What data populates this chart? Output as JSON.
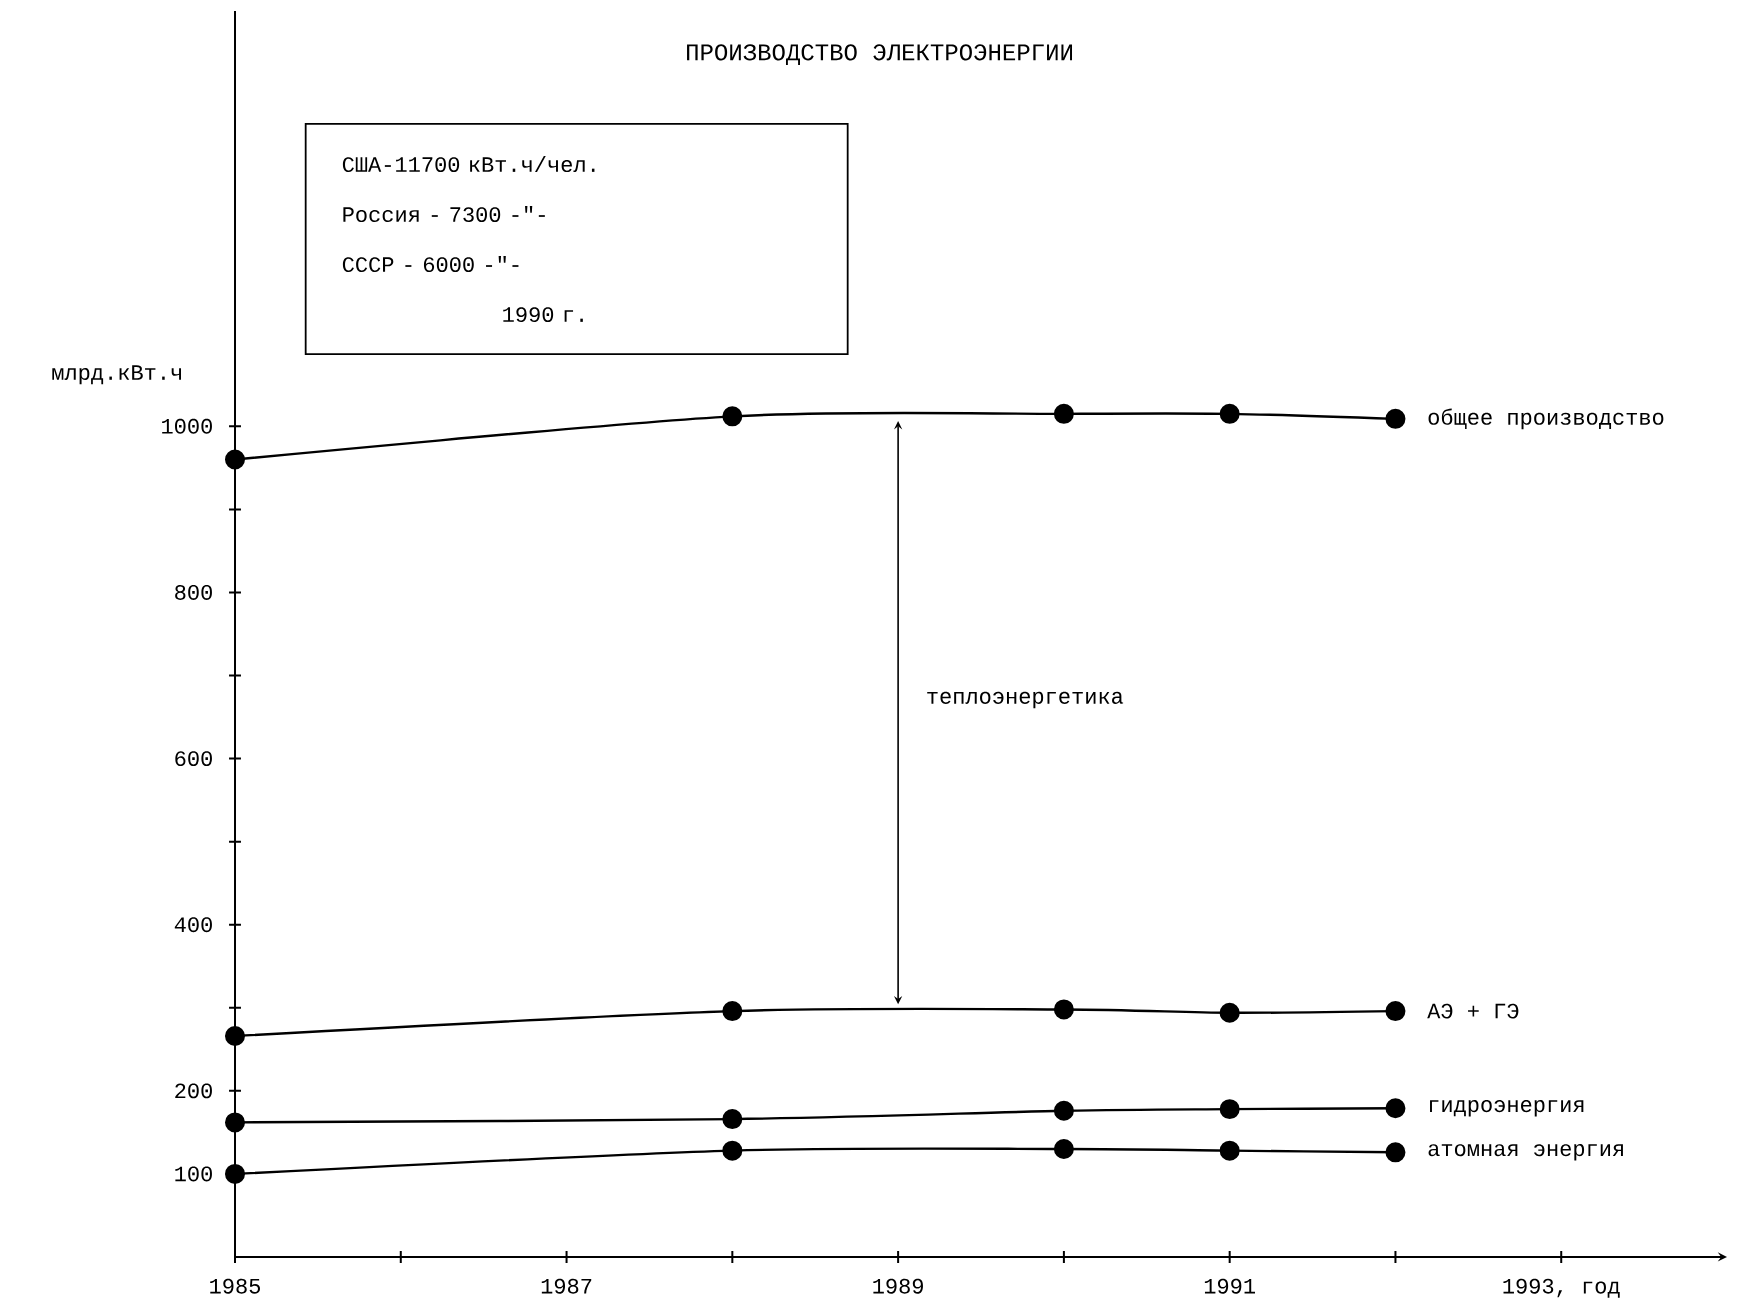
{
  "chart_data": {
    "type": "line",
    "title": "ПРОИЗВОДСТВО ЭЛЕКТРОЭНЕРГИИ",
    "ylabel": "млрд.кВт.ч",
    "x": [
      1985,
      1988,
      1990,
      1991,
      1992
    ],
    "series": [
      {
        "name": "общее производство",
        "color": "#000000",
        "values": [
          960,
          1012,
          1015,
          1015,
          1009
        ]
      },
      {
        "name": "АЭ + ГЭ",
        "color": "#000000",
        "values": [
          266,
          296,
          298,
          294,
          296
        ]
      },
      {
        "name": "гидроэнергия",
        "color": "#000000",
        "values": [
          162,
          166,
          176,
          178,
          179
        ]
      },
      {
        "name": "атомная энергия",
        "color": "#000000",
        "values": [
          100,
          128,
          130,
          128,
          126
        ]
      }
    ],
    "xlim": [
      1985,
      1994
    ],
    "ylim": [
      0,
      1500
    ],
    "xticks": [
      1985,
      {
        "value": 1986,
        "label": null
      },
      1987,
      {
        "value": 1988,
        "label": null
      },
      1989,
      {
        "value": 1990,
        "label": null
      },
      1991,
      {
        "value": 1992,
        "label": null
      },
      {
        "value": 1993,
        "label": "1993, год"
      }
    ],
    "yticks": [
      100,
      200,
      {
        "value": 300,
        "label": null
      },
      400,
      {
        "value": 500,
        "label": null
      },
      600,
      {
        "value": 700,
        "label": null
      },
      800,
      {
        "value": 900,
        "label": null
      },
      1000
    ],
    "annotations": [
      "теплоэнергетика",
      "США-11700 кВт.ч/чел.",
      "Россия - 7300 -\"-",
      "СССР - 6000 -\"-",
      "1990 г."
    ],
    "marker": "circle",
    "line_style": "solid",
    "grid": false,
    "legend": false
  }
}
